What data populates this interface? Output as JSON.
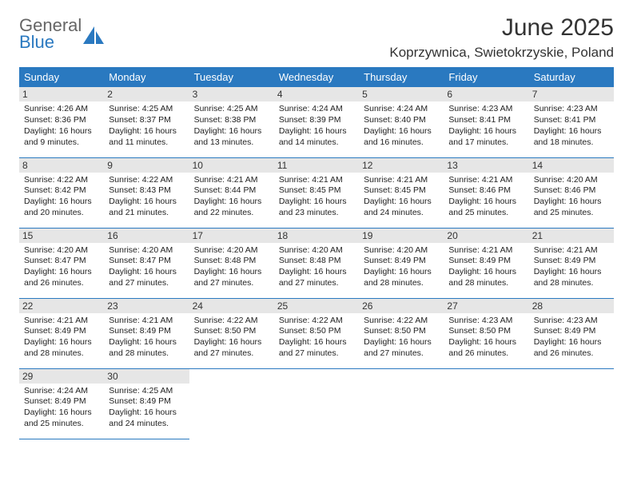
{
  "logo": {
    "top": "General",
    "bottom": "Blue"
  },
  "header": {
    "month_title": "June 2025",
    "location": "Koprzywnica, Swietokrzyskie, Poland"
  },
  "weekdays": [
    "Sunday",
    "Monday",
    "Tuesday",
    "Wednesday",
    "Thursday",
    "Friday",
    "Saturday"
  ],
  "colors": {
    "header_bg": "#2a79c0",
    "header_text": "#ffffff",
    "daynum_bg": "#e6e6e6",
    "border": "#2a79c0",
    "logo_blue": "#2a79c0",
    "logo_gray": "#666666"
  },
  "fonts": {
    "month_title_size": 30,
    "location_size": 17,
    "weekday_size": 13,
    "daynum_size": 12,
    "body_size": 10.5
  },
  "days": [
    {
      "n": "1",
      "sunrise": "Sunrise: 4:26 AM",
      "sunset": "Sunset: 8:36 PM",
      "daylight": "Daylight: 16 hours and 9 minutes."
    },
    {
      "n": "2",
      "sunrise": "Sunrise: 4:25 AM",
      "sunset": "Sunset: 8:37 PM",
      "daylight": "Daylight: 16 hours and 11 minutes."
    },
    {
      "n": "3",
      "sunrise": "Sunrise: 4:25 AM",
      "sunset": "Sunset: 8:38 PM",
      "daylight": "Daylight: 16 hours and 13 minutes."
    },
    {
      "n": "4",
      "sunrise": "Sunrise: 4:24 AM",
      "sunset": "Sunset: 8:39 PM",
      "daylight": "Daylight: 16 hours and 14 minutes."
    },
    {
      "n": "5",
      "sunrise": "Sunrise: 4:24 AM",
      "sunset": "Sunset: 8:40 PM",
      "daylight": "Daylight: 16 hours and 16 minutes."
    },
    {
      "n": "6",
      "sunrise": "Sunrise: 4:23 AM",
      "sunset": "Sunset: 8:41 PM",
      "daylight": "Daylight: 16 hours and 17 minutes."
    },
    {
      "n": "7",
      "sunrise": "Sunrise: 4:23 AM",
      "sunset": "Sunset: 8:41 PM",
      "daylight": "Daylight: 16 hours and 18 minutes."
    },
    {
      "n": "8",
      "sunrise": "Sunrise: 4:22 AM",
      "sunset": "Sunset: 8:42 PM",
      "daylight": "Daylight: 16 hours and 20 minutes."
    },
    {
      "n": "9",
      "sunrise": "Sunrise: 4:22 AM",
      "sunset": "Sunset: 8:43 PM",
      "daylight": "Daylight: 16 hours and 21 minutes."
    },
    {
      "n": "10",
      "sunrise": "Sunrise: 4:21 AM",
      "sunset": "Sunset: 8:44 PM",
      "daylight": "Daylight: 16 hours and 22 minutes."
    },
    {
      "n": "11",
      "sunrise": "Sunrise: 4:21 AM",
      "sunset": "Sunset: 8:45 PM",
      "daylight": "Daylight: 16 hours and 23 minutes."
    },
    {
      "n": "12",
      "sunrise": "Sunrise: 4:21 AM",
      "sunset": "Sunset: 8:45 PM",
      "daylight": "Daylight: 16 hours and 24 minutes."
    },
    {
      "n": "13",
      "sunrise": "Sunrise: 4:21 AM",
      "sunset": "Sunset: 8:46 PM",
      "daylight": "Daylight: 16 hours and 25 minutes."
    },
    {
      "n": "14",
      "sunrise": "Sunrise: 4:20 AM",
      "sunset": "Sunset: 8:46 PM",
      "daylight": "Daylight: 16 hours and 25 minutes."
    },
    {
      "n": "15",
      "sunrise": "Sunrise: 4:20 AM",
      "sunset": "Sunset: 8:47 PM",
      "daylight": "Daylight: 16 hours and 26 minutes."
    },
    {
      "n": "16",
      "sunrise": "Sunrise: 4:20 AM",
      "sunset": "Sunset: 8:47 PM",
      "daylight": "Daylight: 16 hours and 27 minutes."
    },
    {
      "n": "17",
      "sunrise": "Sunrise: 4:20 AM",
      "sunset": "Sunset: 8:48 PM",
      "daylight": "Daylight: 16 hours and 27 minutes."
    },
    {
      "n": "18",
      "sunrise": "Sunrise: 4:20 AM",
      "sunset": "Sunset: 8:48 PM",
      "daylight": "Daylight: 16 hours and 27 minutes."
    },
    {
      "n": "19",
      "sunrise": "Sunrise: 4:20 AM",
      "sunset": "Sunset: 8:49 PM",
      "daylight": "Daylight: 16 hours and 28 minutes."
    },
    {
      "n": "20",
      "sunrise": "Sunrise: 4:21 AM",
      "sunset": "Sunset: 8:49 PM",
      "daylight": "Daylight: 16 hours and 28 minutes."
    },
    {
      "n": "21",
      "sunrise": "Sunrise: 4:21 AM",
      "sunset": "Sunset: 8:49 PM",
      "daylight": "Daylight: 16 hours and 28 minutes."
    },
    {
      "n": "22",
      "sunrise": "Sunrise: 4:21 AM",
      "sunset": "Sunset: 8:49 PM",
      "daylight": "Daylight: 16 hours and 28 minutes."
    },
    {
      "n": "23",
      "sunrise": "Sunrise: 4:21 AM",
      "sunset": "Sunset: 8:49 PM",
      "daylight": "Daylight: 16 hours and 28 minutes."
    },
    {
      "n": "24",
      "sunrise": "Sunrise: 4:22 AM",
      "sunset": "Sunset: 8:50 PM",
      "daylight": "Daylight: 16 hours and 27 minutes."
    },
    {
      "n": "25",
      "sunrise": "Sunrise: 4:22 AM",
      "sunset": "Sunset: 8:50 PM",
      "daylight": "Daylight: 16 hours and 27 minutes."
    },
    {
      "n": "26",
      "sunrise": "Sunrise: 4:22 AM",
      "sunset": "Sunset: 8:50 PM",
      "daylight": "Daylight: 16 hours and 27 minutes."
    },
    {
      "n": "27",
      "sunrise": "Sunrise: 4:23 AM",
      "sunset": "Sunset: 8:50 PM",
      "daylight": "Daylight: 16 hours and 26 minutes."
    },
    {
      "n": "28",
      "sunrise": "Sunrise: 4:23 AM",
      "sunset": "Sunset: 8:49 PM",
      "daylight": "Daylight: 16 hours and 26 minutes."
    },
    {
      "n": "29",
      "sunrise": "Sunrise: 4:24 AM",
      "sunset": "Sunset: 8:49 PM",
      "daylight": "Daylight: 16 hours and 25 minutes."
    },
    {
      "n": "30",
      "sunrise": "Sunrise: 4:25 AM",
      "sunset": "Sunset: 8:49 PM",
      "daylight": "Daylight: 16 hours and 24 minutes."
    }
  ]
}
